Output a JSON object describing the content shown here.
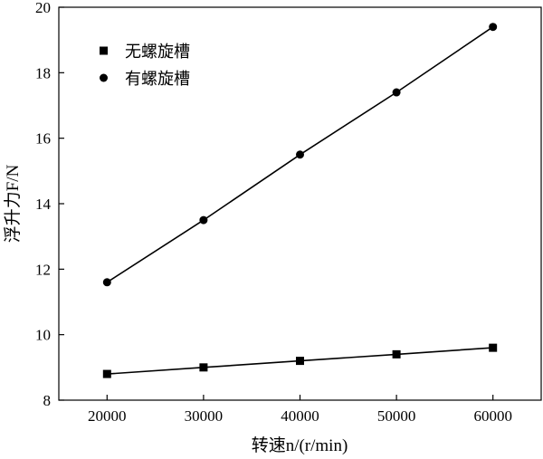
{
  "chart_data": {
    "type": "line",
    "title": "",
    "xlabel": "转速n/(r/min)",
    "ylabel": "浮升力F/N",
    "x": [
      20000,
      30000,
      40000,
      50000,
      60000
    ],
    "xticks": [
      "20000",
      "30000",
      "40000",
      "50000",
      "60000"
    ],
    "yticks": [
      "8",
      "10",
      "12",
      "14",
      "16",
      "18",
      "20"
    ],
    "xlim": [
      15000,
      65000
    ],
    "ylim": [
      8,
      20
    ],
    "grid": false,
    "legend_position": "top-left",
    "series": [
      {
        "name": "无螺旋槽",
        "marker": "square",
        "values": [
          8.8,
          9.0,
          9.2,
          9.4,
          9.6
        ]
      },
      {
        "name": "有螺旋槽",
        "marker": "circle",
        "values": [
          11.6,
          13.5,
          15.5,
          17.4,
          19.4
        ]
      }
    ],
    "colors": {
      "line": "#000000",
      "marker": "#000000"
    }
  }
}
